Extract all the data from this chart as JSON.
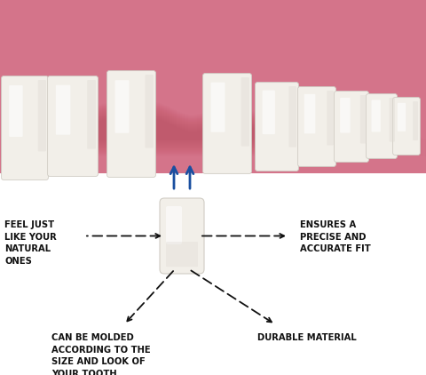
{
  "bg_color": "#ffffff",
  "gum_light": "#e8a0a8",
  "gum_mid": "#d4748a",
  "gum_dark": "#c05060",
  "tooth_base": "#f2efe9",
  "tooth_light": "#faf9f7",
  "tooth_shadow": "#dedad3",
  "tooth_edge": "#d0ccc4",
  "arrow_blue": "#1a4fa0",
  "arrow_black": "#111111",
  "text_color": "#111111",
  "label_left": "FEEL JUST\nLIKE YOUR\nNATURAL\nONES",
  "label_right": "ENSURES A\nPRECISE AND\nACCURATE FIT",
  "label_bot_left": "CAN BE MOLDED\nACCORDING TO THE\nSIZE AND LOOK OF\nYOUR TOOTH",
  "label_bot_right": "DURABLE MATERIAL",
  "label_fontsize": 7.2,
  "label_fontweight": "bold"
}
